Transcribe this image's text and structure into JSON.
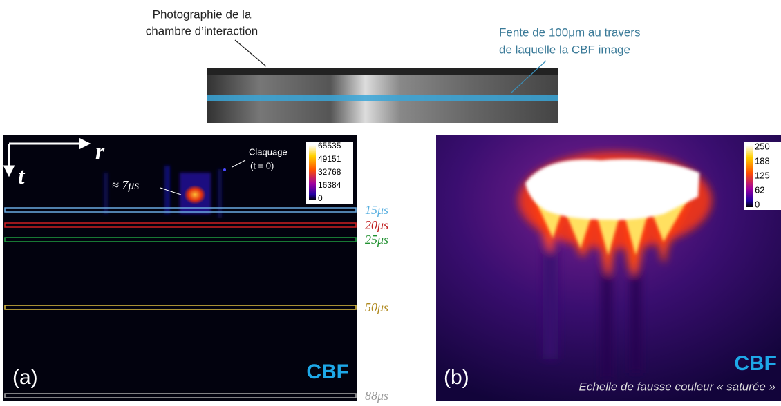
{
  "photo": {
    "caption_lines": [
      "Photographie de la",
      "chambre d’interaction"
    ],
    "slit_lines": [
      "Fente de 100μm au travers",
      "de laquelle la CBF image"
    ]
  },
  "panel_a": {
    "axis_r": "r",
    "axis_t": "t",
    "breakdown_lines": [
      "Claquage",
      "(t = 0)"
    ],
    "peak_label": "≈ 7μs",
    "colorbar_ticks": [
      65535,
      49151,
      32768,
      16384,
      0
    ],
    "panel_label": "(a)",
    "tag": "CBF",
    "time_labels": [
      "15μs",
      "20μs",
      "25μs",
      "50μs",
      "88μs"
    ]
  },
  "panel_b": {
    "colorbar_ticks": [
      250,
      188,
      125,
      62,
      0
    ],
    "panel_label": "(b)",
    "tag": "CBF",
    "caption": "Echelle de fausse couleur « saturée »"
  }
}
